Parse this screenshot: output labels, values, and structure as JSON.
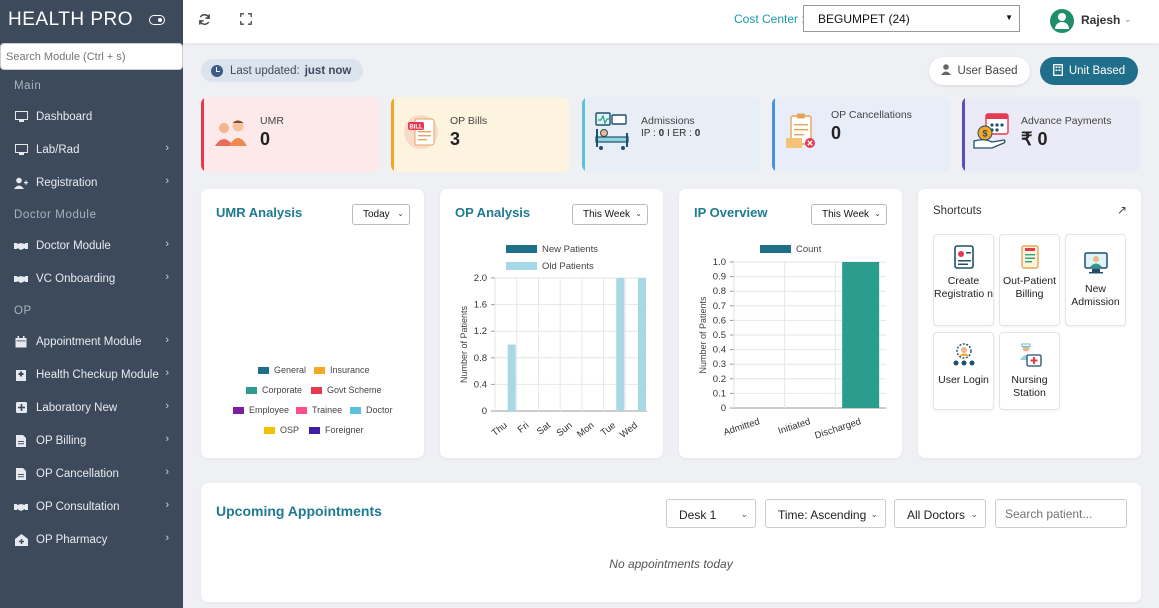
{
  "app": {
    "title": "HEALTH PRO"
  },
  "sidebar": {
    "search_placeholder": "Search Module (Ctrl + s)",
    "sections": {
      "main": "Main",
      "doctor": "Doctor Module",
      "op": "OP"
    },
    "items": [
      {
        "label": "Dashboard",
        "icon": "monitor-icon"
      },
      {
        "label": "Lab/Rad",
        "icon": "monitor-icon"
      },
      {
        "label": "Registration",
        "icon": "user-plus-icon"
      },
      {
        "label": "Doctor Module",
        "icon": "handshake-icon"
      },
      {
        "label": "VC Onboarding",
        "icon": "handshake-icon"
      },
      {
        "label": "Appointment Module",
        "icon": "calendar-icon"
      },
      {
        "label": "Health Checkup Module",
        "icon": "hospital-icon"
      },
      {
        "label": "Laboratory New",
        "icon": "plus-square-icon"
      },
      {
        "label": "OP Billing",
        "icon": "file-icon"
      },
      {
        "label": "OP Cancellation",
        "icon": "file-icon"
      },
      {
        "label": "OP Consultation",
        "icon": "handshake-icon"
      },
      {
        "label": "OP Pharmacy",
        "icon": "clinic-icon"
      }
    ]
  },
  "topbar": {
    "cost_center_label": "Cost Center :",
    "cost_center_value": "BEGUMPET (24)",
    "user_name": "Rajesh"
  },
  "status": {
    "last_updated_label": "Last updated:",
    "last_updated_value": "just now",
    "user_based": "User Based",
    "unit_based": "Unit Based"
  },
  "cards": {
    "umr": {
      "label": "UMR",
      "value": "0"
    },
    "op_bills": {
      "label": "OP Bills",
      "value": "3"
    },
    "admissions": {
      "label": "Admissions",
      "ip_label": "IP :",
      "ip_value": "0",
      "sep": "I",
      "er_label": "ER :",
      "er_value": "0"
    },
    "op_cancellations": {
      "label": "OP Cancellations",
      "value": "0"
    },
    "advance_payments": {
      "label": "Advance Payments",
      "value": "₹ 0"
    }
  },
  "umr_analysis": {
    "title": "UMR Analysis",
    "filter": "Today",
    "legend": [
      {
        "name": "General",
        "color": "#1f6f8b"
      },
      {
        "name": "Insurance",
        "color": "#f5a623"
      },
      {
        "name": "Corporate",
        "color": "#2a9d8f"
      },
      {
        "name": "Govt Scheme",
        "color": "#e63950"
      },
      {
        "name": "Employee",
        "color": "#7b1fa2"
      },
      {
        "name": "Trainee",
        "color": "#ff4d8a"
      },
      {
        "name": "Doctor",
        "color": "#5bc0de"
      },
      {
        "name": "OSP",
        "color": "#f2c200"
      },
      {
        "name": "Foreigner",
        "color": "#3d1fa3"
      }
    ]
  },
  "op_analysis": {
    "title": "OP Analysis",
    "filter": "This Week"
  },
  "ip_overview": {
    "title": "IP Overview",
    "filter": "This Week"
  },
  "shortcuts": {
    "title": "Shortcuts",
    "items": [
      {
        "label": "Create Registratio n",
        "icon": "registration-icon"
      },
      {
        "label": "Out-Patient Billing",
        "icon": "billing-icon"
      },
      {
        "label": "New Admission",
        "icon": "admission-icon"
      },
      {
        "label": "User Login",
        "icon": "user-login-icon"
      },
      {
        "label": "Nursing Station",
        "icon": "nursing-icon"
      }
    ]
  },
  "appointments": {
    "title": "Upcoming Appointments",
    "desk": "Desk 1",
    "sort": "Time: Ascending",
    "doctors": "All Doctors",
    "search_placeholder": "Search patient...",
    "empty": "No appointments today"
  },
  "chart_data": [
    {
      "type": "bar",
      "title": "OP Analysis",
      "categories": [
        "Thu",
        "Fri",
        "Sat",
        "Sun",
        "Mon",
        "Tue",
        "Wed"
      ],
      "series": [
        {
          "name": "New Patients",
          "color": "#1f6f8b",
          "values": [
            0,
            0,
            0,
            0,
            0,
            0,
            0
          ]
        },
        {
          "name": "Old Patients",
          "color": "#a8d8e6",
          "values": [
            1,
            0,
            0,
            0,
            0,
            2,
            2
          ]
        }
      ],
      "ylabel": "Number of Patients",
      "yticks": [
        "0",
        "0.4",
        "0.8",
        "1.2",
        "1.6",
        "2.0"
      ],
      "ylim": [
        0,
        2.0
      ],
      "legend": "top"
    },
    {
      "type": "bar",
      "title": "IP Overview",
      "categories": [
        "Admitted",
        "Initiated",
        "Discharged"
      ],
      "series": [
        {
          "name": "Count",
          "color": "#1f6f8b",
          "values": [
            0,
            0,
            1
          ]
        }
      ],
      "highlight_color": "#2a9d8f",
      "ylabel": "Number of Patients",
      "yticks": [
        "0",
        "0.1",
        "0.2",
        "0.3",
        "0.4",
        "0.5",
        "0.6",
        "0.7",
        "0.8",
        "0.9",
        "1.0"
      ],
      "ylim": [
        0,
        1.0
      ],
      "legend": "top"
    }
  ]
}
